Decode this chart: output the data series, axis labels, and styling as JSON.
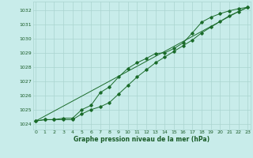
{
  "title": "Graphe pression niveau de la mer (hPa)",
  "bg_color": "#c8ecea",
  "grid_color": "#aad4d0",
  "line_color": "#1a6b2a",
  "text_color": "#1a5c28",
  "ylabel_values": [
    1024,
    1025,
    1026,
    1027,
    1028,
    1029,
    1030,
    1031,
    1032
  ],
  "xlim": [
    -0.3,
    23.3
  ],
  "ylim": [
    1023.6,
    1032.6
  ],
  "xticks": [
    0,
    1,
    2,
    3,
    4,
    5,
    6,
    7,
    8,
    9,
    10,
    11,
    12,
    13,
    14,
    15,
    16,
    17,
    18,
    19,
    20,
    21,
    22,
    23
  ],
  "line1": [
    1024.2,
    1024.3,
    1024.3,
    1024.3,
    1024.3,
    1024.7,
    1025.0,
    1025.2,
    1025.5,
    1026.1,
    1026.7,
    1027.3,
    1027.8,
    1028.3,
    1028.7,
    1029.1,
    1029.5,
    1029.9,
    1030.4,
    1030.8,
    1031.2,
    1031.6,
    1031.9,
    1032.2
  ],
  "line2": [
    1024.2,
    1024.3,
    1024.3,
    1024.4,
    1024.4,
    1025.0,
    1025.3,
    1026.2,
    1026.6,
    1027.3,
    1027.9,
    1028.3,
    1028.6,
    1028.95,
    1029.0,
    1029.3,
    1029.7,
    1030.4,
    1031.15,
    1031.5,
    1031.75,
    1031.95,
    1032.1,
    1032.2
  ],
  "line3": [
    1024.2,
    1024.55,
    1024.9,
    1025.25,
    1025.6,
    1025.95,
    1026.3,
    1026.65,
    1027.0,
    1027.35,
    1027.7,
    1028.05,
    1028.4,
    1028.75,
    1029.1,
    1029.45,
    1029.8,
    1030.15,
    1030.5,
    1030.85,
    1031.2,
    1031.55,
    1031.9,
    1032.2
  ]
}
